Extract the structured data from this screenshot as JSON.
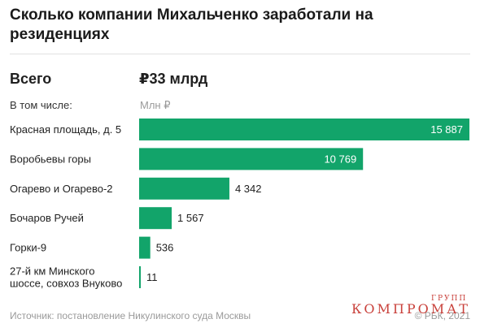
{
  "title": "Сколько компании Михальченко заработали на резиденциях",
  "total": {
    "label": "Всего",
    "value": "₽33 млрд"
  },
  "including_label": "В том числе:",
  "unit_label": "Млн ₽",
  "source": "Источник: постановление Никулинского суда Москвы",
  "credit": "© РБК, 2021",
  "watermark": {
    "main": "КОМПРОМАТ",
    "sup": "ГРУПП"
  },
  "colors": {
    "bar": "#12a46a",
    "value_inside": "#ffffff",
    "value_outside": "#1f1f1f",
    "label": "#1f1f1f"
  },
  "chart_data": {
    "type": "bar",
    "orientation": "horizontal",
    "unit": "Млн ₽",
    "categories": [
      [
        "Красная площадь, д. 5"
      ],
      [
        "Воробьевы горы"
      ],
      [
        "Огарево и Огарево-2"
      ],
      [
        "Бочаров Ручей"
      ],
      [
        "Горки-9"
      ],
      [
        "27-й км Минского",
        "шоссе, совхоз Внуково"
      ]
    ],
    "values": [
      15887,
      10769,
      4342,
      1567,
      536,
      11
    ],
    "value_labels": [
      "15 887",
      "10 769",
      "4 342",
      "1 567",
      "536",
      "11"
    ],
    "xlim": [
      0,
      15887
    ],
    "grid": false,
    "legend": "none"
  }
}
